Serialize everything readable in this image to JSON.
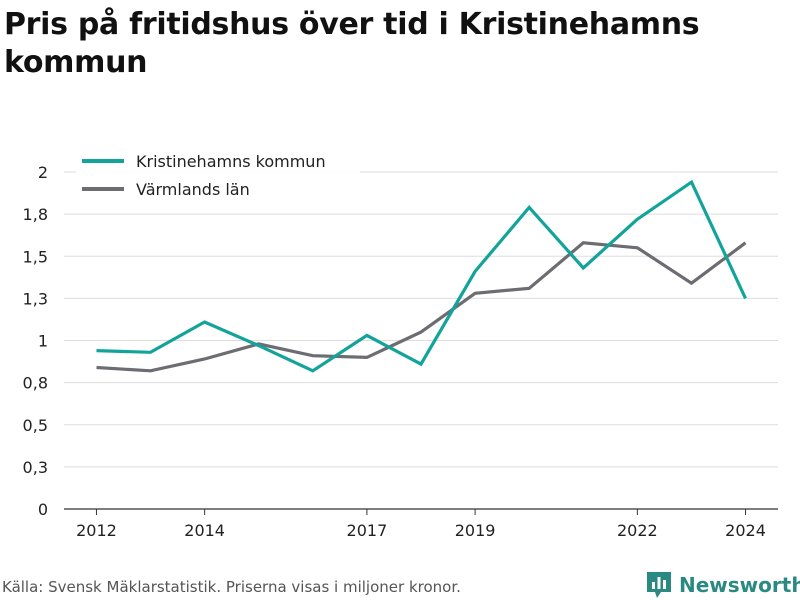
{
  "title": "Pris på fritidshus över tid i Kristinehamns kommun",
  "source": "Källa: Svensk Mäklarstatistik. Priserna visas i miljoner kronor.",
  "brand": "Newsworthy",
  "chart_data": {
    "type": "line",
    "x": [
      2012,
      2013,
      2014,
      2015,
      2016,
      2017,
      2018,
      2019,
      2020,
      2021,
      2022,
      2023,
      2024
    ],
    "x_ticks": [
      2012,
      2014,
      2017,
      2019,
      2022,
      2024
    ],
    "x_tick_labels": [
      "2012",
      "2014",
      "2017",
      "2019",
      "2022",
      "2024"
    ],
    "y_ticks": [
      0,
      0.25,
      0.5,
      0.75,
      1.0,
      1.25,
      1.5,
      1.75,
      2.0
    ],
    "y_tick_labels": [
      "0",
      "0,3",
      "0,5",
      "0,8",
      "1",
      "1,3",
      "1,5",
      "1,8",
      "2"
    ],
    "ylim": [
      0,
      2.0
    ],
    "xlim": [
      2011.4,
      2024.6
    ],
    "grid": true,
    "legend": "top-left",
    "series": [
      {
        "name": "Kristinehamns kommun",
        "color": "#12a39a",
        "values": [
          0.94,
          0.93,
          1.11,
          0.97,
          0.82,
          1.03,
          0.86,
          1.41,
          1.79,
          1.43,
          1.72,
          1.94,
          1.25
        ]
      },
      {
        "name": "Värmlands län",
        "color": "#6d6c72",
        "values": [
          0.84,
          0.82,
          0.89,
          0.98,
          0.91,
          0.9,
          1.05,
          1.28,
          1.31,
          1.58,
          1.55,
          1.34,
          1.58
        ]
      }
    ]
  }
}
